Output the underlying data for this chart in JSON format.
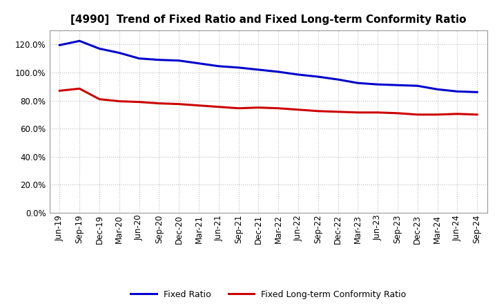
{
  "title": "[4990]  Trend of Fixed Ratio and Fixed Long-term Conformity Ratio",
  "x_labels": [
    "Jun-19",
    "Sep-19",
    "Dec-19",
    "Mar-20",
    "Jun-20",
    "Sep-20",
    "Dec-20",
    "Mar-21",
    "Jun-21",
    "Sep-21",
    "Dec-21",
    "Mar-22",
    "Jun-22",
    "Sep-22",
    "Dec-22",
    "Mar-23",
    "Jun-23",
    "Sep-23",
    "Dec-23",
    "Mar-24",
    "Jun-24",
    "Sep-24"
  ],
  "fixed_ratio": [
    119.5,
    122.5,
    117.0,
    114.0,
    110.0,
    109.0,
    108.5,
    106.5,
    104.5,
    103.5,
    102.0,
    100.5,
    98.5,
    97.0,
    95.0,
    92.5,
    91.5,
    91.0,
    90.5,
    88.0,
    86.5,
    86.0
  ],
  "fixed_lt_ratio": [
    87.0,
    88.5,
    81.0,
    79.5,
    79.0,
    78.0,
    77.5,
    76.5,
    75.5,
    74.5,
    75.0,
    74.5,
    73.5,
    72.5,
    72.0,
    71.5,
    71.5,
    71.0,
    70.0,
    70.0,
    70.5,
    70.0
  ],
  "fixed_ratio_color": "#0000cc",
  "fixed_lt_ratio_color": "#cc0000",
  "ylim": [
    0,
    130
  ],
  "yticks": [
    0,
    20,
    40,
    60,
    80,
    100,
    120
  ],
  "background_color": "#ffffff",
  "plot_bg_color": "#ffffff",
  "grid_color": "#bbbbbb",
  "line_width": 2.2,
  "legend_fixed_ratio": "Fixed Ratio",
  "legend_fixed_lt_ratio": "Fixed Long-term Conformity Ratio",
  "title_fontsize": 11,
  "tick_fontsize": 8.5,
  "legend_fontsize": 9
}
